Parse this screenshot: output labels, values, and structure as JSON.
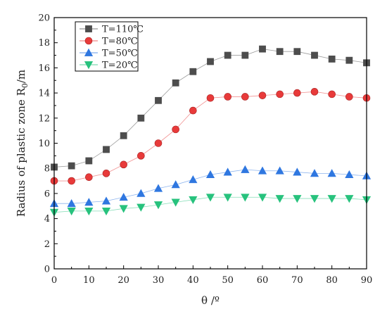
{
  "chart_data": {
    "type": "line",
    "xlabel": "θ /º",
    "ylabel_main": "Radius of plastic zone R",
    "ylabel_sub": "0",
    "ylabel_unit": "/m",
    "xlim": [
      0,
      90
    ],
    "ylim": [
      0,
      20
    ],
    "x_ticks": [
      "0",
      "10",
      "20",
      "30",
      "40",
      "50",
      "60",
      "70",
      "80",
      "90"
    ],
    "y_ticks": [
      "0",
      "2",
      "4",
      "6",
      "8",
      "10",
      "12",
      "14",
      "16",
      "18",
      "20"
    ],
    "grid": false,
    "legend_position": "top-left",
    "x": [
      0,
      5,
      10,
      15,
      20,
      25,
      30,
      35,
      40,
      45,
      50,
      55,
      60,
      65,
      70,
      75,
      80,
      85,
      90
    ],
    "series": [
      {
        "name": "T=110℃",
        "marker": "square",
        "color": "#4d4d4d",
        "values": [
          8.1,
          8.2,
          8.6,
          9.5,
          10.6,
          12.0,
          13.4,
          14.8,
          15.7,
          16.5,
          17.0,
          17.0,
          17.5,
          17.3,
          17.3,
          17.0,
          16.7,
          16.6,
          16.4
        ]
      },
      {
        "name": "T=80℃",
        "marker": "circle",
        "color": "#e83a3a",
        "values": [
          7.0,
          7.0,
          7.3,
          7.6,
          8.3,
          9.0,
          10.0,
          11.1,
          12.6,
          13.6,
          13.7,
          13.7,
          13.8,
          13.9,
          14.0,
          14.1,
          13.9,
          13.7,
          13.6
        ]
      },
      {
        "name": "T=50℃",
        "marker": "triangle-up",
        "color": "#2f77e0",
        "values": [
          5.2,
          5.2,
          5.3,
          5.4,
          5.7,
          6.0,
          6.4,
          6.7,
          7.1,
          7.5,
          7.7,
          7.9,
          7.8,
          7.8,
          7.7,
          7.6,
          7.6,
          7.5,
          7.4
        ]
      },
      {
        "name": "T=20℃",
        "marker": "triangle-down",
        "color": "#27c27d",
        "values": [
          4.5,
          4.6,
          4.6,
          4.6,
          4.8,
          4.9,
          5.1,
          5.3,
          5.5,
          5.7,
          5.7,
          5.7,
          5.7,
          5.6,
          5.6,
          5.6,
          5.6,
          5.6,
          5.5
        ]
      }
    ]
  }
}
